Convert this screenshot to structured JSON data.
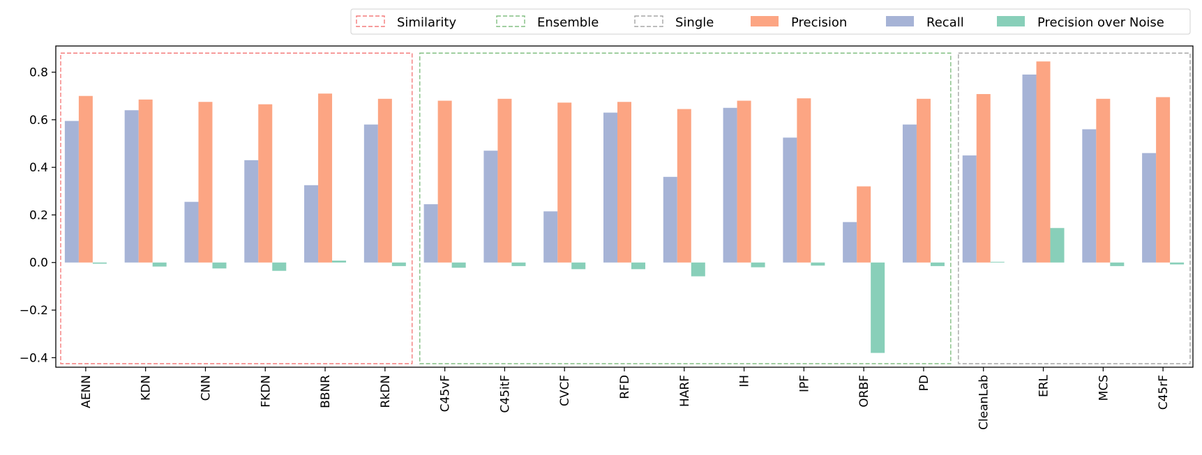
{
  "chart_data": {
    "type": "bar",
    "categories": [
      "AENN",
      "KDN",
      "CNN",
      "FKDN",
      "BBNR",
      "RkDN",
      "C45vF",
      "C45itF",
      "CVCF",
      "RFD",
      "HARF",
      "IH",
      "IPF",
      "ORBF",
      "PD",
      "CleanLab",
      "ERL",
      "MCS",
      "C45rF"
    ],
    "series": [
      {
        "name": "Recall",
        "color": "#a6b3d6",
        "values": [
          0.595,
          0.64,
          0.255,
          0.43,
          0.325,
          0.58,
          0.245,
          0.47,
          0.215,
          0.63,
          0.36,
          0.65,
          0.525,
          0.17,
          0.58,
          0.45,
          0.79,
          0.56,
          0.46
        ]
      },
      {
        "name": "Precision",
        "color": "#fca583",
        "values": [
          0.7,
          0.685,
          0.675,
          0.665,
          0.71,
          0.688,
          0.68,
          0.688,
          0.672,
          0.675,
          0.645,
          0.68,
          0.69,
          0.32,
          0.688,
          0.708,
          0.845,
          0.688,
          0.695
        ]
      },
      {
        "name": "Precision over Noise",
        "color": "#88cfb9",
        "values": [
          -0.005,
          -0.017,
          -0.025,
          -0.035,
          0.008,
          -0.015,
          -0.022,
          -0.015,
          -0.028,
          -0.028,
          -0.058,
          -0.02,
          -0.013,
          -0.38,
          -0.015,
          0.003,
          0.145,
          -0.015,
          -0.008
        ]
      }
    ],
    "groups": [
      {
        "name": "Similarity",
        "color": "#f47c7c",
        "first": 0,
        "last": 5
      },
      {
        "name": "Ensemble",
        "color": "#82bf82",
        "first": 6,
        "last": 14
      },
      {
        "name": "Single",
        "color": "#a6a6a6",
        "first": 15,
        "last": 18
      }
    ],
    "legend_order": [
      "Similarity",
      "Ensemble",
      "Single",
      "Precision",
      "Recall",
      "Precision over Noise"
    ],
    "legend_placement": "top-right",
    "ylim": [
      -0.44,
      0.91
    ],
    "yticks": [
      -0.4,
      -0.2,
      0.0,
      0.2,
      0.4,
      0.6,
      0.8
    ],
    "ytick_labels": [
      "−0.4",
      "−0.2",
      "0.0",
      "0.2",
      "0.4",
      "0.6",
      "0.8"
    ],
    "group_box_range": [
      -0.425,
      0.88
    ],
    "grid": false
  }
}
